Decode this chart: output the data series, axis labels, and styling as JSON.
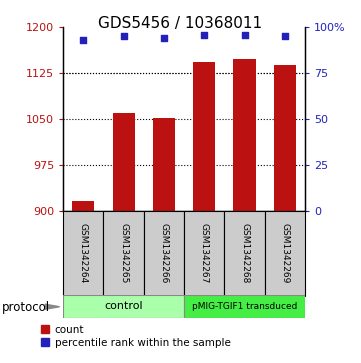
{
  "title": "GDS5456 / 10368011",
  "samples": [
    "GSM1342264",
    "GSM1342265",
    "GSM1342266",
    "GSM1342267",
    "GSM1342268",
    "GSM1342269"
  ],
  "counts": [
    916,
    1060,
    1052,
    1143,
    1148,
    1138
  ],
  "percentile_ranks": [
    93,
    95,
    94,
    96,
    96,
    95
  ],
  "ylim_left": [
    900,
    1200
  ],
  "ylim_right": [
    0,
    100
  ],
  "yticks_left": [
    900,
    975,
    1050,
    1125,
    1200
  ],
  "yticks_right": [
    0,
    25,
    50,
    75,
    100
  ],
  "ytick_labels_right": [
    "0",
    "25",
    "50",
    "75",
    "100%"
  ],
  "bar_color": "#BB1111",
  "dot_color": "#2222BB",
  "bar_width": 0.55,
  "control_color": "#aaffaa",
  "pmig_color": "#44ee44",
  "protocol_label": "protocol",
  "legend_count_label": "count",
  "legend_pct_label": "percentile rank within the sample",
  "grid_linestyle": "dotted"
}
